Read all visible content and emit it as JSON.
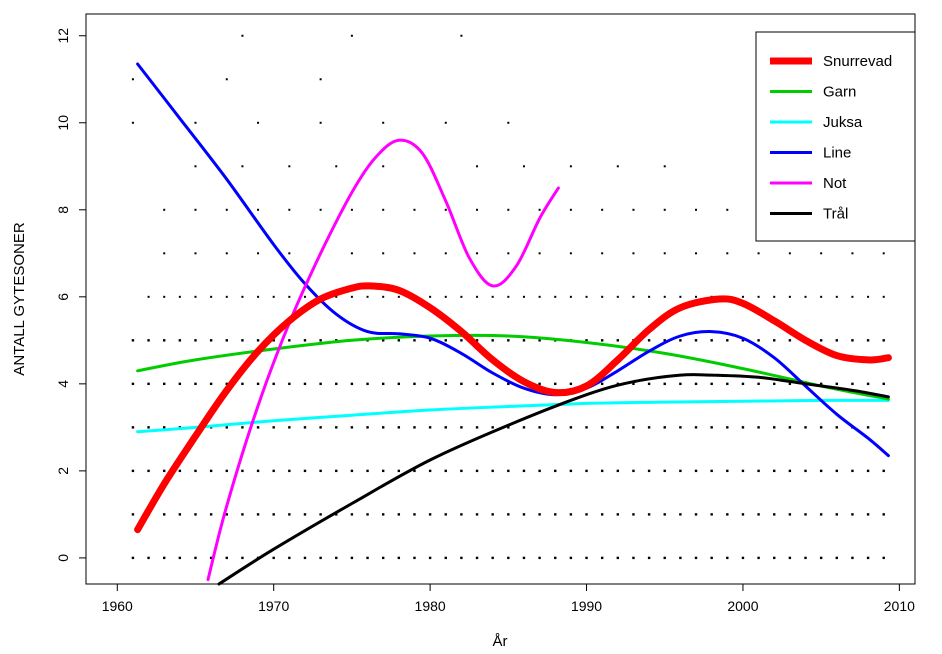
{
  "chart_data": {
    "type": "line",
    "xlabel": "År",
    "ylabel": "ANTALL GYTESONER",
    "xlim": [
      1958,
      2011
    ],
    "ylim": [
      -0.6,
      12.5
    ],
    "x_ticks": [
      "1960",
      "1970",
      "1980",
      "1990",
      "2000",
      "2010"
    ],
    "y_ticks": [
      "0",
      "2",
      "4",
      "6",
      "8",
      "10",
      "12"
    ],
    "legend_position": "top-right",
    "series": [
      {
        "name": "Snurrevad",
        "color": "#ff0000",
        "x": [
          1961.3,
          1963,
          1965,
          1967,
          1969,
          1971,
          1973,
          1975,
          1976.2,
          1978,
          1980,
          1982,
          1984,
          1986,
          1988,
          1990,
          1992,
          1994,
          1996,
          1998.5,
          2000,
          2002,
          2004,
          2006,
          2008,
          2009.3
        ],
        "y": [
          0.65,
          1.7,
          2.8,
          3.85,
          4.75,
          5.45,
          5.95,
          6.2,
          6.25,
          6.15,
          5.75,
          5.2,
          4.55,
          4.05,
          3.8,
          3.95,
          4.55,
          5.25,
          5.75,
          5.95,
          5.85,
          5.45,
          5.0,
          4.65,
          4.55,
          4.6
        ]
      },
      {
        "name": "Garn",
        "color": "#00cc00",
        "x": [
          1961.3,
          1965,
          1970,
          1975,
          1980,
          1985,
          1990,
          1995,
          2000,
          2005,
          2009.3
        ],
        "y": [
          4.3,
          4.55,
          4.8,
          5.0,
          5.1,
          5.1,
          4.95,
          4.7,
          4.35,
          3.95,
          3.65
        ]
      },
      {
        "name": "Juksa",
        "color": "#00ffff",
        "x": [
          1961.3,
          1965,
          1970,
          1975,
          1980,
          1985,
          1990,
          1995,
          2000,
          2005,
          2009.3
        ],
        "y": [
          2.9,
          3.0,
          3.15,
          3.28,
          3.4,
          3.48,
          3.55,
          3.58,
          3.6,
          3.62,
          3.62
        ]
      },
      {
        "name": "Line",
        "color": "#0000ff",
        "x": [
          1961.3,
          1964,
          1967,
          1970,
          1972,
          1974,
          1976,
          1978,
          1980,
          1982,
          1984,
          1986,
          1988,
          1990,
          1992,
          1994,
          1996,
          1998,
          2000,
          2002,
          2004,
          2006,
          2008,
          2009.3
        ],
        "y": [
          11.35,
          10.1,
          8.7,
          7.2,
          6.3,
          5.6,
          5.2,
          5.15,
          5.05,
          4.7,
          4.25,
          3.9,
          3.75,
          3.9,
          4.3,
          4.75,
          5.1,
          5.2,
          5.05,
          4.6,
          3.95,
          3.3,
          2.75,
          2.35
        ]
      },
      {
        "name": "Not",
        "color": "#ff00ff",
        "x": [
          1965.8,
          1967,
          1969,
          1971,
          1973,
          1975,
          1976.5,
          1978,
          1979.5,
          1981,
          1982.5,
          1984,
          1985.5,
          1987,
          1988.2
        ],
        "y": [
          -0.5,
          1.2,
          3.5,
          5.4,
          7.0,
          8.4,
          9.2,
          9.6,
          9.3,
          8.2,
          6.9,
          6.25,
          6.7,
          7.8,
          8.5
        ]
      },
      {
        "name": "Trål",
        "color": "#000000",
        "x": [
          1966.5,
          1970,
          1975,
          1980,
          1985,
          1990,
          1993,
          1996,
          1998,
          2001,
          2004,
          2007,
          2009.3
        ],
        "y": [
          -0.6,
          0.2,
          1.25,
          2.25,
          3.05,
          3.75,
          4.05,
          4.2,
          4.2,
          4.15,
          4.0,
          3.85,
          3.7
        ]
      }
    ]
  }
}
